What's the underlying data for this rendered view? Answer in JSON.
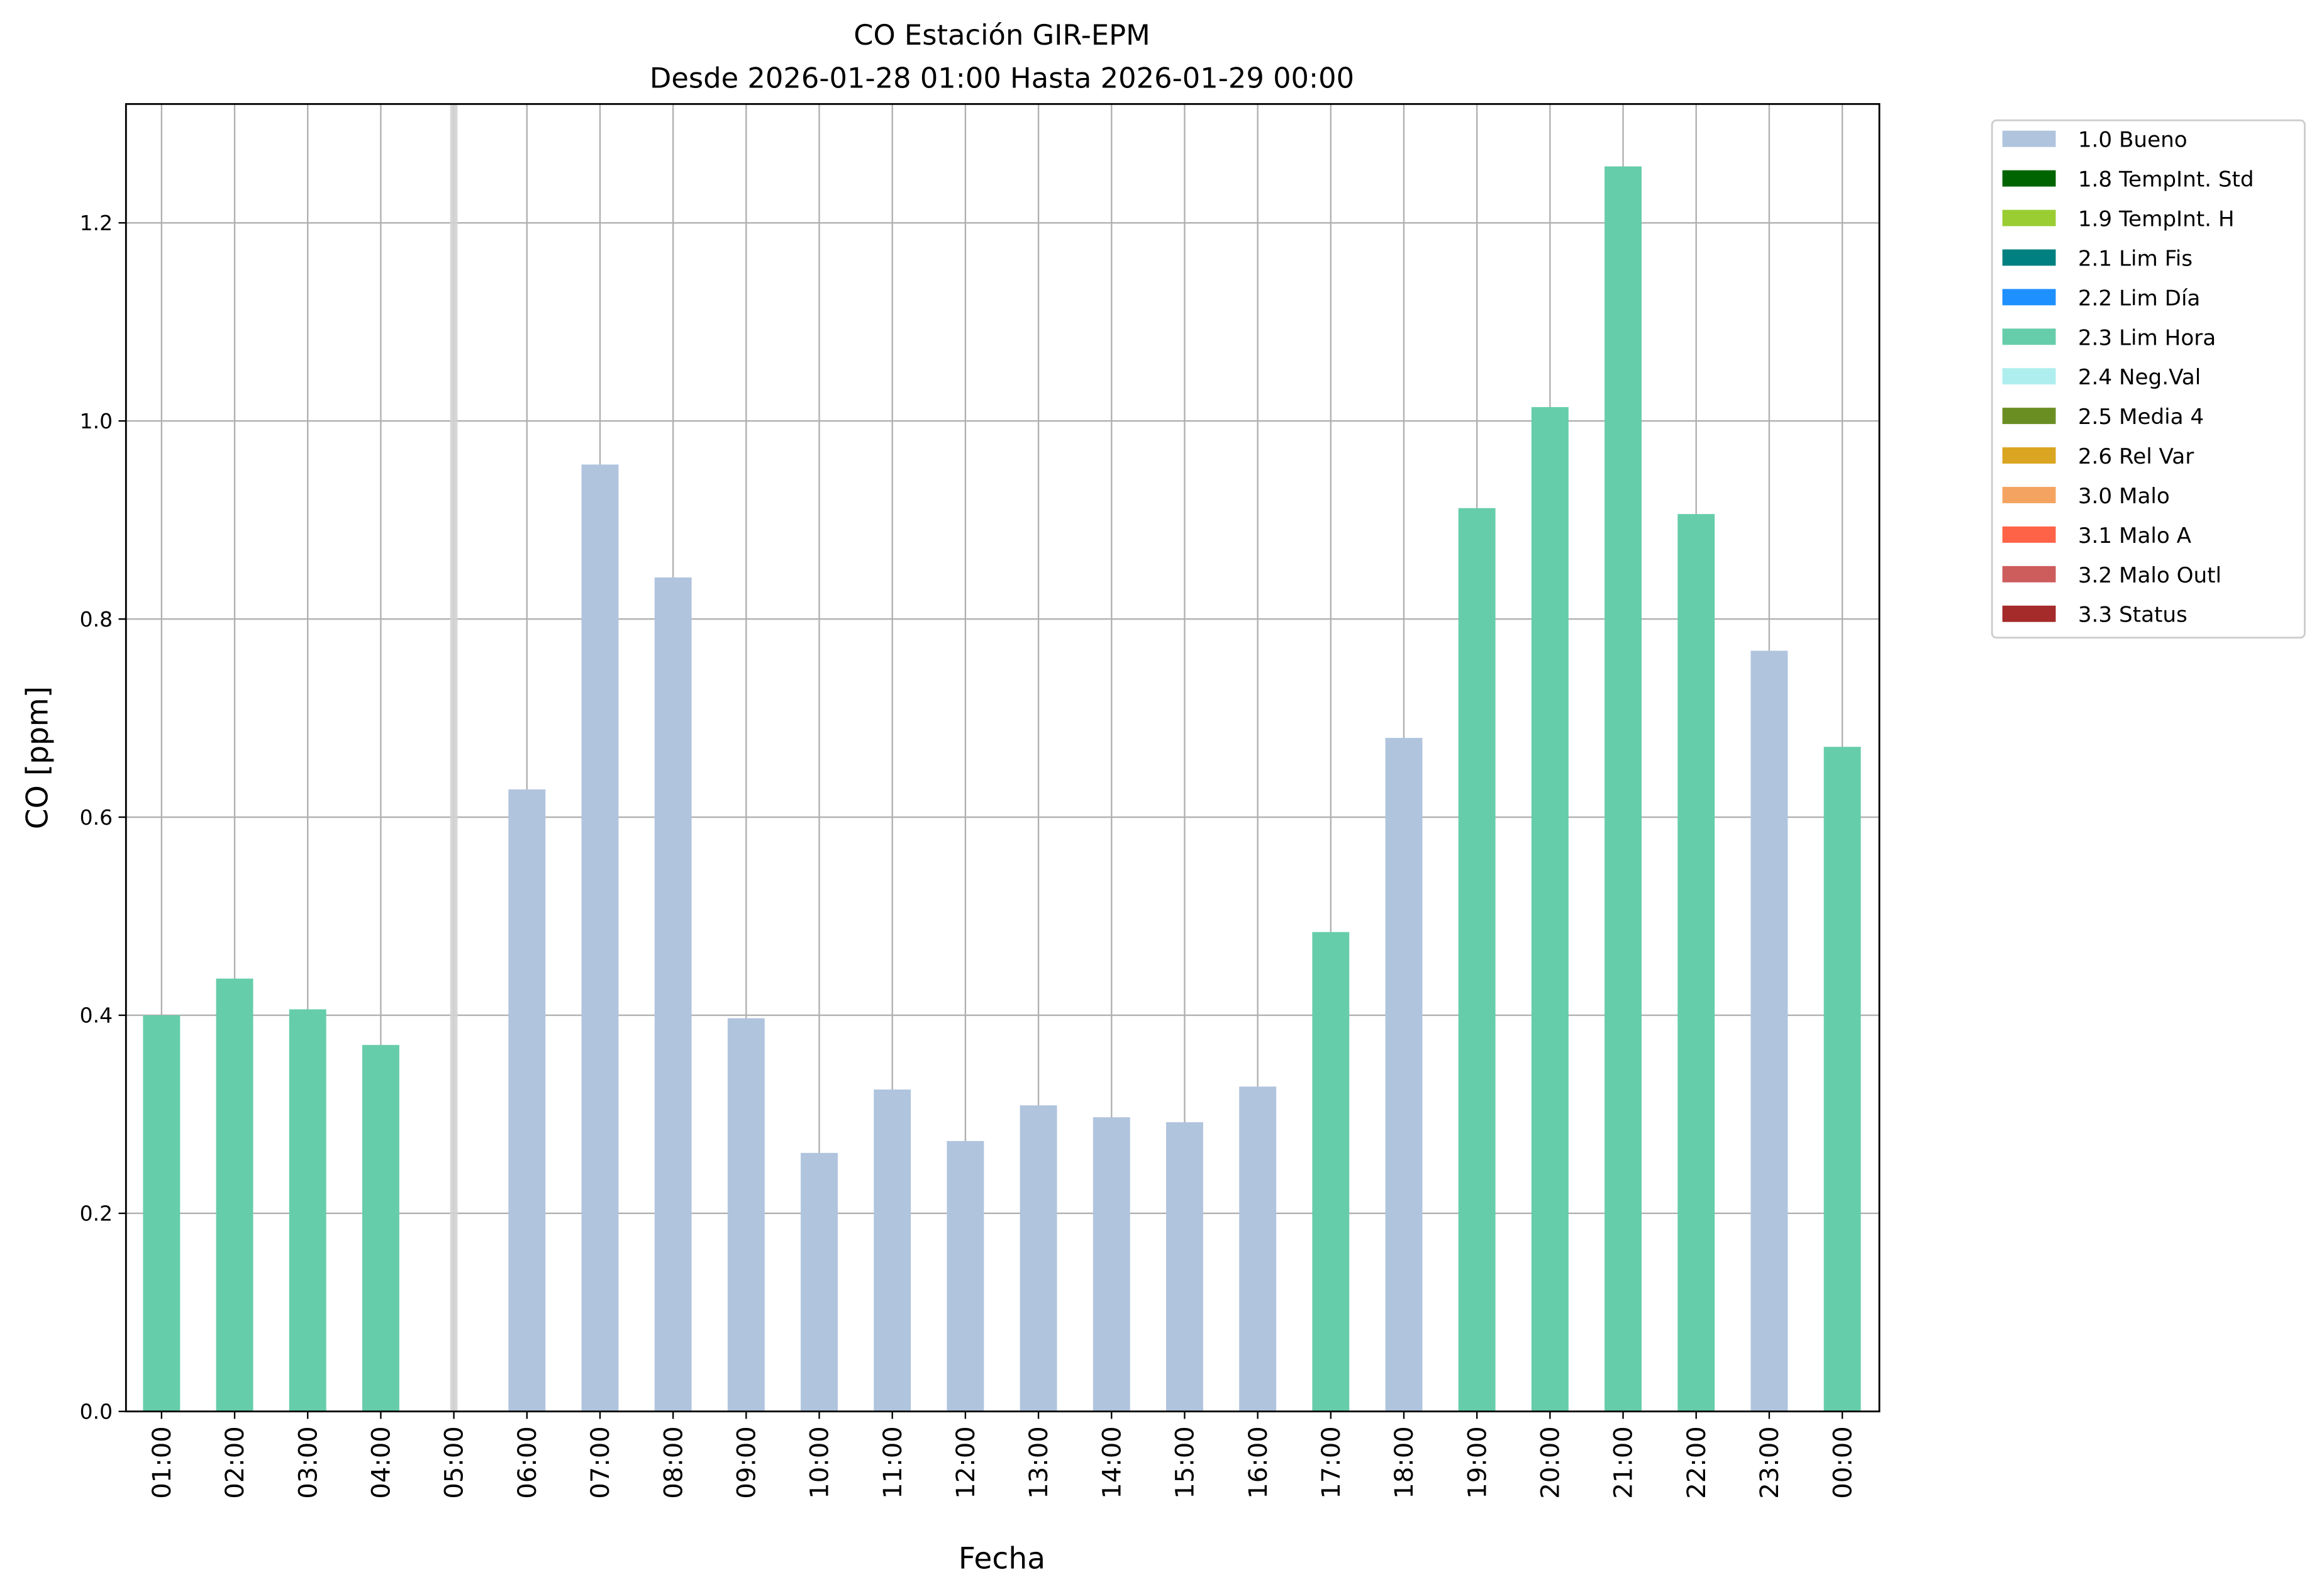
{
  "chart_data": {
    "type": "bar",
    "title": "CO Estación GIR-EPM",
    "subtitle": "Desde 2026-01-28 01:00 Hasta 2026-01-29 00:00",
    "xlabel": "Fecha",
    "ylabel": "CO [ppm]",
    "ylim": [
      0,
      1.32
    ],
    "yticks": [
      "0.0",
      "0.2",
      "0.4",
      "0.6",
      "0.8",
      "1.0",
      "1.2"
    ],
    "grid": true,
    "legend_position": "outside-right-top",
    "categories": [
      "01:00",
      "02:00",
      "03:00",
      "04:00",
      "05:00",
      "06:00",
      "07:00",
      "08:00",
      "09:00",
      "10:00",
      "11:00",
      "12:00",
      "13:00",
      "14:00",
      "15:00",
      "16:00",
      "17:00",
      "18:00",
      "19:00",
      "20:00",
      "21:00",
      "22:00",
      "23:00",
      "00:00"
    ],
    "values": [
      0.4,
      0.437,
      0.406,
      0.37,
      null,
      0.628,
      0.956,
      0.842,
      0.397,
      0.261,
      0.325,
      0.273,
      0.309,
      0.297,
      0.292,
      0.328,
      0.484,
      0.68,
      0.912,
      1.014,
      1.257,
      0.906,
      0.768,
      0.671
    ],
    "flags": [
      "2.3 Lim Hora",
      "2.3 Lim Hora",
      "2.3 Lim Hora",
      "2.3 Lim Hora",
      "missing",
      "1.0 Bueno",
      "1.0 Bueno",
      "1.0 Bueno",
      "1.0 Bueno",
      "1.0 Bueno",
      "1.0 Bueno",
      "1.0 Bueno",
      "1.0 Bueno",
      "1.0 Bueno",
      "1.0 Bueno",
      "1.0 Bueno",
      "2.3 Lim Hora",
      "1.0 Bueno",
      "2.3 Lim Hora",
      "2.3 Lim Hora",
      "2.3 Lim Hora",
      "2.3 Lim Hora",
      "1.0 Bueno",
      "2.3 Lim Hora"
    ],
    "missing_color": "#d3d3d3",
    "legend": [
      {
        "label": "1.0 Bueno",
        "color": "#b0c4de"
      },
      {
        "label": "1.8 TempInt. Std",
        "color": "#006400"
      },
      {
        "label": "1.9 TempInt. H",
        "color": "#9acd32"
      },
      {
        "label": "2.1 Lim Fis",
        "color": "#008080"
      },
      {
        "label": "2.2 Lim Día",
        "color": "#1e90ff"
      },
      {
        "label": "2.3 Lim Hora",
        "color": "#66cdaa"
      },
      {
        "label": "2.4 Neg.Val",
        "color": "#afeeee"
      },
      {
        "label": "2.5 Media 4",
        "color": "#6b8e23"
      },
      {
        "label": "2.6 Rel Var",
        "color": "#daa520"
      },
      {
        "label": "3.0 Malo",
        "color": "#f4a460"
      },
      {
        "label": "3.1 Malo A",
        "color": "#ff6347"
      },
      {
        "label": "3.2 Malo Outl",
        "color": "#cd5c5c"
      },
      {
        "label": "3.3 Status",
        "color": "#a52a2a"
      }
    ]
  }
}
